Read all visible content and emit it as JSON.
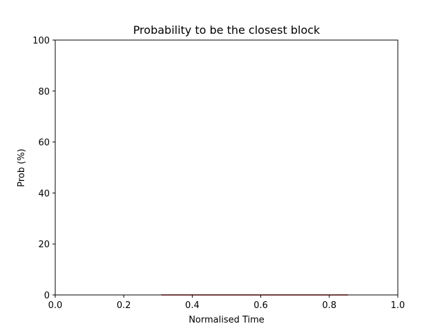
{
  "chart_data": {
    "type": "line",
    "title": "Probability to be the closest block",
    "xlabel": "Normalised Time",
    "ylabel": "Prob (%)",
    "xlim": [
      0.0,
      1.0
    ],
    "ylim": [
      0,
      100
    ],
    "xticks": [
      0.0,
      0.2,
      0.4,
      0.6,
      0.8,
      1.0
    ],
    "xtick_labels": [
      "0.0",
      "0.2",
      "0.4",
      "0.6",
      "0.8",
      "1.0"
    ],
    "yticks": [
      0,
      20,
      40,
      60,
      80,
      100
    ],
    "ytick_labels": [
      "0",
      "20",
      "40",
      "60",
      "80",
      "100"
    ],
    "grid": false,
    "series": [
      {
        "color": "#c00000",
        "x": [
          0.31,
          0.855
        ],
        "y": [
          0,
          0
        ]
      }
    ]
  }
}
